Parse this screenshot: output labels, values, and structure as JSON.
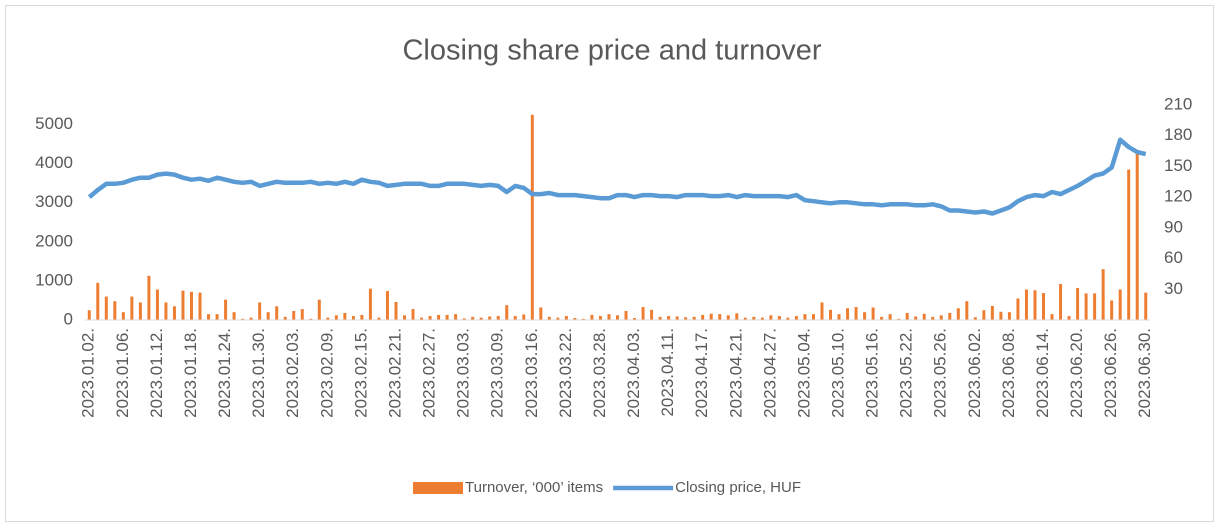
{
  "chart_data": {
    "type": "bar-line",
    "title": "Closing share price and turnover",
    "categories": [
      "2023.01.02.",
      null,
      null,
      null,
      "2023.01.06.",
      null,
      null,
      null,
      "2023.01.12.",
      null,
      null,
      null,
      "2023.01.18.",
      null,
      null,
      null,
      "2023.01.24.",
      null,
      null,
      null,
      "2023.01.30.",
      null,
      null,
      null,
      "2023.02.03.",
      null,
      null,
      null,
      "2023.02.09.",
      null,
      null,
      null,
      "2023.02.15.",
      null,
      null,
      null,
      "2023.02.21.",
      null,
      null,
      null,
      "2023.02.27.",
      null,
      null,
      null,
      "2023.03.03.",
      null,
      null,
      null,
      "2023.03.09.",
      null,
      null,
      null,
      "2023.03.16.",
      null,
      null,
      null,
      "2023.03.22.",
      null,
      null,
      null,
      "2023.03.28.",
      null,
      null,
      null,
      "2023.04.03.",
      null,
      null,
      null,
      "2023.04.11.",
      null,
      null,
      null,
      "2023.04.17.",
      null,
      null,
      null,
      "2023.04.21.",
      null,
      null,
      null,
      "2023.04.27.",
      null,
      null,
      null,
      "2023.05.04.",
      null,
      null,
      null,
      "2023.05.10.",
      null,
      null,
      null,
      "2023.05.16.",
      null,
      null,
      null,
      "2023.05.22.",
      null,
      null,
      null,
      "2023.05.26.",
      null,
      null,
      null,
      "2023.06.02.",
      null,
      null,
      null,
      "2023.06.08.",
      null,
      null,
      null,
      "2023.06.14.",
      null,
      null,
      null,
      "2023.06.20.",
      null,
      null,
      null,
      "2023.06.26.",
      null,
      null,
      null,
      "2023.06.30."
    ],
    "series": [
      {
        "name": "Turnover, ‘000’ items",
        "color": "#ed7d31",
        "kind": "bar",
        "values": [
          250,
          950,
          600,
          480,
          200,
          600,
          450,
          1130,
          780,
          450,
          350,
          750,
          720,
          700,
          150,
          150,
          520,
          200,
          30,
          60,
          450,
          200,
          350,
          80,
          230,
          280,
          30,
          520,
          60,
          120,
          180,
          100,
          130,
          800,
          60,
          740,
          460,
          120,
          280,
          60,
          100,
          130,
          130,
          150,
          40,
          80,
          60,
          90,
          100,
          380,
          100,
          140,
          5250,
          320,
          80,
          60,
          100,
          50,
          30,
          130,
          100,
          150,
          120,
          230,
          50,
          330,
          260,
          80,
          100,
          90,
          70,
          80,
          130,
          160,
          150,
          120,
          170,
          60,
          80,
          60,
          120,
          100,
          60,
          100,
          150,
          150,
          450,
          260,
          150,
          300,
          330,
          200,
          320,
          80,
          150,
          30,
          180,
          90,
          160,
          80,
          120,
          180,
          300,
          480,
          70,
          250,
          360,
          210,
          200,
          550,
          780,
          760,
          690,
          150,
          920,
          100,
          820,
          680,
          680,
          1300,
          500,
          780,
          3850,
          4300,
          700
        ]
      },
      {
        "name": "Closing price, HUF",
        "color": "#5b9bd5",
        "kind": "line",
        "axis": "y2",
        "values": [
          120,
          127,
          133,
          133,
          134,
          137,
          139,
          139,
          142,
          143,
          142,
          139,
          137,
          138,
          136,
          139,
          137,
          135,
          134,
          135,
          131,
          133,
          135,
          134,
          134,
          134,
          135,
          133,
          134,
          133,
          135,
          133,
          137,
          135,
          134,
          131,
          132,
          133,
          133,
          133,
          131,
          131,
          133,
          133,
          133,
          132,
          131,
          132,
          131,
          125,
          131,
          129,
          123,
          123,
          124,
          122,
          122,
          122,
          121,
          120,
          119,
          119,
          122,
          122,
          120,
          122,
          122,
          121,
          121,
          120,
          122,
          122,
          122,
          121,
          121,
          122,
          120,
          122,
          121,
          121,
          121,
          121,
          120,
          122,
          117,
          116,
          115,
          114,
          115,
          115,
          114,
          113,
          113,
          112,
          113,
          113,
          113,
          112,
          112,
          113,
          111,
          107,
          107,
          106,
          105,
          106,
          104,
          107,
          110,
          116,
          120,
          122,
          121,
          125,
          123,
          127,
          131,
          136,
          141,
          143,
          149,
          176,
          169,
          164,
          162
        ]
      }
    ],
    "ylim": [
      0,
      5500
    ],
    "yticks": [
      0,
      1000,
      2000,
      3000,
      4000,
      5000
    ],
    "y2lim": [
      0,
      210
    ],
    "y2ticks": [
      30,
      60,
      90,
      120,
      150,
      180,
      210
    ],
    "legend": "bottom"
  }
}
